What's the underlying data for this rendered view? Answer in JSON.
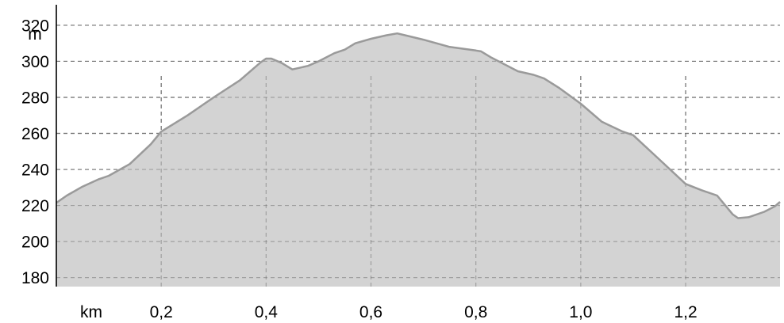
{
  "chart_data": {
    "type": "area",
    "xlabel": "km",
    "ylabel": "m",
    "xlim": [
      0,
      1.38
    ],
    "ylim": [
      175,
      327
    ],
    "x_ticks": [
      0.2,
      0.4,
      0.6,
      0.8,
      1.0,
      1.2
    ],
    "x_tick_labels": [
      "0,2",
      "0,4",
      "0,6",
      "0,8",
      "1,0",
      "1,2"
    ],
    "y_ticks": [
      180,
      200,
      220,
      240,
      260,
      280,
      300,
      320
    ],
    "y_tick_labels": [
      "180",
      "200",
      "220",
      "240",
      "260",
      "280",
      "300",
      "320"
    ],
    "grid": true,
    "colors": {
      "fill": "#d3d3d3",
      "line": "#9a9a9a",
      "grid": "#777777"
    },
    "series": [
      {
        "x": [
          0.0,
          0.02,
          0.05,
          0.08,
          0.1,
          0.14,
          0.18,
          0.2,
          0.25,
          0.3,
          0.35,
          0.39,
          0.4,
          0.41,
          0.43,
          0.45,
          0.48,
          0.5,
          0.53,
          0.55,
          0.57,
          0.6,
          0.63,
          0.65,
          0.7,
          0.75,
          0.8,
          0.81,
          0.83,
          0.85,
          0.88,
          0.91,
          0.93,
          0.96,
          1.0,
          1.04,
          1.08,
          1.1,
          1.15,
          1.2,
          1.23,
          1.26,
          1.29,
          1.3,
          1.32,
          1.35,
          1.37,
          1.38
        ],
        "values": [
          221.5,
          225.5,
          230.5,
          234.5,
          236.5,
          243,
          254,
          261,
          270,
          280,
          289.5,
          299.5,
          301.5,
          301.5,
          299,
          295.5,
          297.5,
          300,
          304.5,
          306.5,
          310,
          312.5,
          314.5,
          315.5,
          312,
          308,
          306,
          305.5,
          302,
          299,
          294.5,
          292.5,
          290.5,
          285,
          276.5,
          266.5,
          261,
          259,
          245.5,
          232,
          228.5,
          225.5,
          215,
          213,
          213.5,
          216.5,
          219.5,
          222
        ]
      }
    ]
  }
}
